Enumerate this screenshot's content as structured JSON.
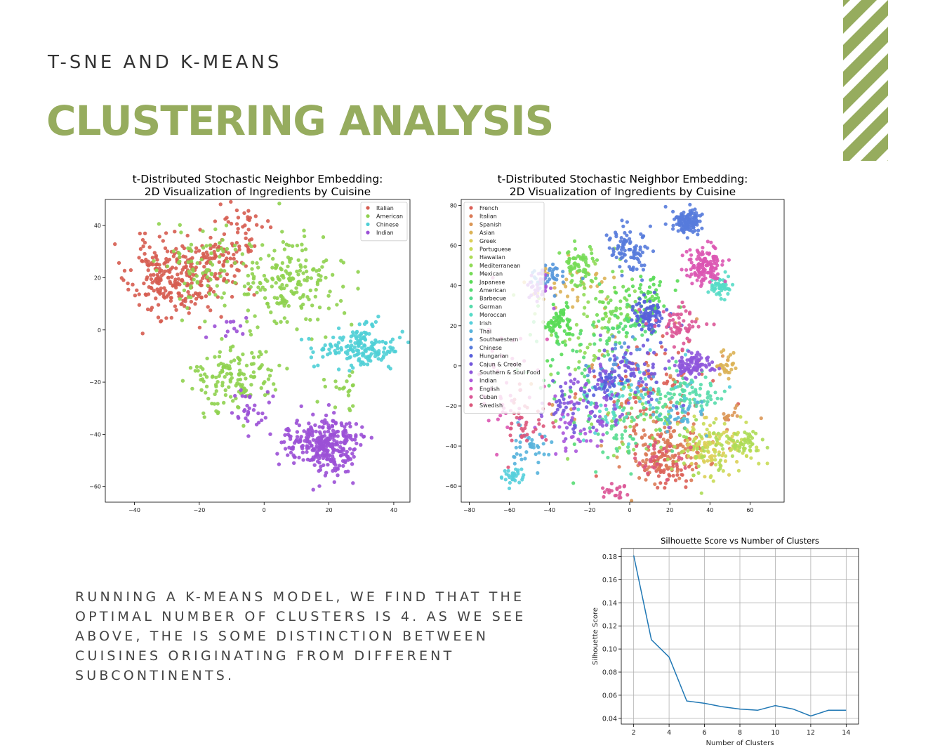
{
  "slide": {
    "subtitle": "T-SNE AND K-MEANS",
    "title": "CLUSTERING ANALYSIS",
    "body": "RUNNING A K-MEANS MODEL, WE FIND THAT THE OPTIMAL NUMBER OF CLUSTERS IS 4. AS WE SEE ABOVE, THE IS SOME DISTINCTION BETWEEN CUISINES ORIGINATING FROM DIFFERENT SUBCONTINENTS.",
    "accent_color": "#96ac5e"
  },
  "chart_data": [
    {
      "type": "scatter",
      "title": "t-Distributed Stochastic Neighbor Embedding:\n2D Visualization of Ingredients by Cuisine",
      "xlabel": "",
      "ylabel": "",
      "xlim": [
        -49,
        45
      ],
      "ylim": [
        -66,
        50
      ],
      "xticks": [
        -40,
        -20,
        0,
        20,
        40
      ],
      "yticks": [
        -60,
        -40,
        -20,
        0,
        20,
        40
      ],
      "grid": false,
      "legend_position": "top-right",
      "series": [
        {
          "name": "Italian",
          "color": "#d65c50",
          "clusters": [
            {
              "cx": -28,
              "cy": 20,
              "sx": 9,
              "sy": 10,
              "n": 260
            },
            {
              "cx": -12,
              "cy": 28,
              "sx": 6,
              "sy": 9,
              "n": 80
            },
            {
              "cx": -5,
              "cy": 40,
              "sx": 4,
              "sy": 5,
              "n": 20
            }
          ]
        },
        {
          "name": "American",
          "color": "#8fd14f",
          "clusters": [
            {
              "cx": 8,
              "cy": 20,
              "sx": 11,
              "sy": 12,
              "n": 190
            },
            {
              "cx": -10,
              "cy": -18,
              "sx": 9,
              "sy": 8,
              "n": 140
            },
            {
              "cx": -18,
              "cy": 25,
              "sx": 8,
              "sy": 12,
              "n": 80
            },
            {
              "cx": 24,
              "cy": -22,
              "sx": 5,
              "sy": 6,
              "n": 20
            }
          ]
        },
        {
          "name": "Chinese",
          "color": "#4fcfd6",
          "clusters": [
            {
              "cx": 30,
              "cy": -6,
              "sx": 7,
              "sy": 5,
              "n": 150
            },
            {
              "cx": 18,
              "cy": -8,
              "sx": 4,
              "sy": 4,
              "n": 20
            }
          ]
        },
        {
          "name": "Indian",
          "color": "#9b50d6",
          "clusters": [
            {
              "cx": 18,
              "cy": -44,
              "sx": 8,
              "sy": 7,
              "n": 320
            },
            {
              "cx": -3,
              "cy": -30,
              "sx": 4,
              "sy": 7,
              "n": 30
            },
            {
              "cx": -8,
              "cy": 0,
              "sx": 4,
              "sy": 3,
              "n": 12
            }
          ]
        }
      ]
    },
    {
      "type": "scatter",
      "title": "t-Distributed Stochastic Neighbor Embedding:\n2D Visualization of Ingredients by Cuisine",
      "xlabel": "",
      "ylabel": "",
      "xlim": [
        -84,
        77
      ],
      "ylim": [
        -68,
        83
      ],
      "xticks": [
        -80,
        -60,
        -40,
        -20,
        0,
        20,
        40,
        60
      ],
      "yticks": [
        -60,
        -40,
        -20,
        0,
        20,
        40,
        60,
        80
      ],
      "grid": false,
      "legend_position": "top-left",
      "series": [
        {
          "name": "French",
          "color": "#db5f57",
          "clusters": [
            {
              "cx": 10,
              "cy": -10,
              "sx": 20,
              "sy": 18,
              "n": 90
            },
            {
              "cx": 20,
              "cy": -50,
              "sx": 8,
              "sy": 6,
              "n": 60
            }
          ]
        },
        {
          "name": "Italian",
          "color": "#db7b57",
          "clusters": [
            {
              "cx": 20,
              "cy": -40,
              "sx": 15,
              "sy": 10,
              "n": 130
            }
          ]
        },
        {
          "name": "Spanish",
          "color": "#db9757",
          "clusters": [
            {
              "cx": 5,
              "cy": -10,
              "sx": 30,
              "sy": 25,
              "n": 40
            },
            {
              "cx": 50,
              "cy": -25,
              "sx": 3,
              "sy": 3,
              "n": 12
            }
          ]
        },
        {
          "name": "Asian",
          "color": "#dbb357",
          "clusters": [
            {
              "cx": 48,
              "cy": 0,
              "sx": 3,
              "sy": 4,
              "n": 30
            },
            {
              "cx": -30,
              "cy": 40,
              "sx": 15,
              "sy": 10,
              "n": 40
            }
          ]
        },
        {
          "name": "Greek",
          "color": "#dbcf57",
          "clusters": [
            {
              "cx": 40,
              "cy": -40,
              "sx": 10,
              "sy": 8,
              "n": 70
            }
          ]
        },
        {
          "name": "Portuguese",
          "color": "#c9db57",
          "clusters": [
            {
              "cx": 45,
              "cy": -40,
              "sx": 12,
              "sy": 10,
              "n": 60
            }
          ]
        },
        {
          "name": "Hawaiian",
          "color": "#addb57",
          "clusters": [
            {
              "cx": 55,
              "cy": -38,
              "sx": 8,
              "sy": 5,
              "n": 50
            },
            {
              "cx": 30,
              "cy": -45,
              "sx": 10,
              "sy": 8,
              "n": 30
            }
          ]
        },
        {
          "name": "Mediterranean",
          "color": "#91db57",
          "clusters": [
            {
              "cx": -20,
              "cy": 20,
              "sx": 15,
              "sy": 20,
              "n": 60
            },
            {
              "cx": 10,
              "cy": -30,
              "sx": 20,
              "sy": 15,
              "n": 40
            }
          ]
        },
        {
          "name": "Mexican",
          "color": "#75db57",
          "clusters": [
            {
              "cx": -25,
              "cy": 50,
              "sx": 6,
              "sy": 6,
              "n": 60
            },
            {
              "cx": -5,
              "cy": 30,
              "sx": 10,
              "sy": 10,
              "n": 50
            }
          ]
        },
        {
          "name": "Japanese",
          "color": "#59db57",
          "clusters": [
            {
              "cx": -35,
              "cy": 20,
              "sx": 6,
              "sy": 8,
              "n": 70
            },
            {
              "cx": 10,
              "cy": 35,
              "sx": 8,
              "sy": 8,
              "n": 50
            }
          ]
        },
        {
          "name": "American",
          "color": "#57db73",
          "clusters": [
            {
              "cx": -20,
              "cy": 0,
              "sx": 20,
              "sy": 25,
              "n": 60
            },
            {
              "cx": 0,
              "cy": 20,
              "sx": 8,
              "sy": 6,
              "n": 40
            }
          ]
        },
        {
          "name": "Barbecue",
          "color": "#57db8f",
          "clusters": [
            {
              "cx": -5,
              "cy": -35,
              "sx": 12,
              "sy": 10,
              "n": 40
            },
            {
              "cx": 20,
              "cy": -20,
              "sx": 10,
              "sy": 10,
              "n": 40
            }
          ]
        },
        {
          "name": "German",
          "color": "#57dbab",
          "clusters": [
            {
              "cx": 30,
              "cy": -15,
              "sx": 10,
              "sy": 6,
              "n": 60
            }
          ]
        },
        {
          "name": "Moroccan",
          "color": "#57dbc7",
          "clusters": [
            {
              "cx": 45,
              "cy": 40,
              "sx": 4,
              "sy": 5,
              "n": 50
            },
            {
              "cx": -10,
              "cy": -20,
              "sx": 10,
              "sy": 8,
              "n": 40
            }
          ]
        },
        {
          "name": "Irish",
          "color": "#57cfdb",
          "clusters": [
            {
              "cx": -58,
              "cy": -55,
              "sx": 4,
              "sy": 3,
              "n": 30
            },
            {
              "cx": 10,
              "cy": -15,
              "sx": 25,
              "sy": 15,
              "n": 40
            }
          ]
        },
        {
          "name": "Thai",
          "color": "#57b3db",
          "clusters": [
            {
              "cx": -50,
              "cy": -40,
              "sx": 6,
              "sy": 8,
              "n": 40
            },
            {
              "cx": 25,
              "cy": -25,
              "sx": 10,
              "sy": 6,
              "n": 30
            }
          ]
        },
        {
          "name": "Southwestern",
          "color": "#5797db",
          "clusters": [
            {
              "cx": -40,
              "cy": 45,
              "sx": 6,
              "sy": 6,
              "n": 40
            },
            {
              "cx": -5,
              "cy": 0,
              "sx": 10,
              "sy": 10,
              "n": 40
            }
          ]
        },
        {
          "name": "Chinese",
          "color": "#577bdb",
          "clusters": [
            {
              "cx": 28,
              "cy": 72,
              "sx": 5,
              "sy": 4,
              "n": 130
            },
            {
              "cx": 0,
              "cy": 58,
              "sx": 6,
              "sy": 8,
              "n": 90
            }
          ]
        },
        {
          "name": "Hungarian",
          "color": "#575fdb",
          "clusters": [
            {
              "cx": 10,
              "cy": 25,
              "sx": 6,
              "sy": 6,
              "n": 80
            },
            {
              "cx": -10,
              "cy": -8,
              "sx": 6,
              "sy": 4,
              "n": 40
            }
          ]
        },
        {
          "name": "Cajun & Creole",
          "color": "#7357db",
          "clusters": [
            {
              "cx": 0,
              "cy": -5,
              "sx": 15,
              "sy": 12,
              "n": 60
            },
            {
              "cx": -30,
              "cy": -20,
              "sx": 10,
              "sy": 12,
              "n": 40
            }
          ]
        },
        {
          "name": "Southern & Soul Food",
          "color": "#8f57db",
          "clusters": [
            {
              "cx": 32,
              "cy": 0,
              "sx": 6,
              "sy": 4,
              "n": 100
            },
            {
              "cx": -15,
              "cy": -15,
              "sx": 15,
              "sy": 15,
              "n": 60
            }
          ]
        },
        {
          "name": "Indian",
          "color": "#ab57db",
          "clusters": [
            {
              "cx": -30,
              "cy": -30,
              "sx": 15,
              "sy": 10,
              "n": 40
            },
            {
              "cx": -45,
              "cy": 40,
              "sx": 4,
              "sy": 6,
              "n": 30
            }
          ]
        },
        {
          "name": "English",
          "color": "#db57b3",
          "clusters": [
            {
              "cx": 38,
              "cy": 50,
              "sx": 6,
              "sy": 6,
              "n": 130
            },
            {
              "cx": -60,
              "cy": -10,
              "sx": 10,
              "sy": 20,
              "n": 40
            }
          ]
        },
        {
          "name": "Cuban",
          "color": "#db5797",
          "clusters": [
            {
              "cx": 25,
              "cy": 20,
              "sx": 8,
              "sy": 6,
              "n": 60
            },
            {
              "cx": -8,
              "cy": -62,
              "sx": 4,
              "sy": 3,
              "n": 20
            }
          ]
        },
        {
          "name": "Swedish",
          "color": "#db577b",
          "clusters": [
            {
              "cx": -50,
              "cy": -30,
              "sx": 8,
              "sy": 10,
              "n": 40
            },
            {
              "cx": 15,
              "cy": -45,
              "sx": 10,
              "sy": 8,
              "n": 30
            }
          ]
        }
      ]
    },
    {
      "type": "line",
      "title": "Silhouette Score vs Number of Clusters",
      "xlabel": "Number of Clusters",
      "ylabel": "Silhouette Score",
      "xlim": [
        1.3,
        14.7
      ],
      "ylim": [
        0.035,
        0.187
      ],
      "xticks": [
        2,
        4,
        6,
        8,
        10,
        12,
        14
      ],
      "yticks": [
        0.04,
        0.06,
        0.08,
        0.1,
        0.12,
        0.14,
        0.16,
        0.18
      ],
      "ytick_labels": [
        "0.04",
        "0.06",
        "0.08",
        "0.10",
        "0.12",
        "0.14",
        "0.16",
        "0.18"
      ],
      "grid": true,
      "x": [
        2,
        3,
        4,
        5,
        6,
        7,
        8,
        9,
        10,
        11,
        12,
        13,
        14
      ],
      "series": [
        {
          "color": "#1f77b4",
          "values": [
            0.181,
            0.108,
            0.093,
            0.055,
            0.053,
            0.05,
            0.048,
            0.047,
            0.051,
            0.048,
            0.042,
            0.047,
            0.047
          ]
        }
      ]
    }
  ]
}
